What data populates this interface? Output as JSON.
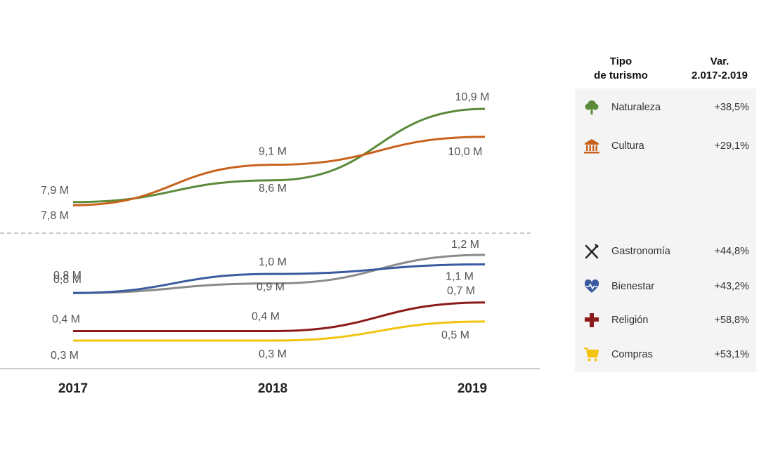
{
  "chart_data": {
    "type": "line",
    "x": [
      "2017",
      "2018",
      "2019"
    ],
    "series": [
      {
        "name": "Naturaleza",
        "color": "#5a8a3a",
        "values": [
          7.9,
          8.6,
          10.9
        ],
        "labels": [
          "7,9 M",
          "8,6 M",
          "10,9 M"
        ]
      },
      {
        "name": "Cultura",
        "color": "#c8611b",
        "values": [
          7.8,
          9.1,
          10.0
        ],
        "labels": [
          "7,8 M",
          "9,1 M",
          "10,0 M"
        ]
      },
      {
        "name": "Gastronomía",
        "color": "#8a8a8a",
        "values": [
          0.8,
          0.9,
          1.2
        ],
        "labels": [
          "0,8 M",
          "0,9 M",
          "1,2 M"
        ]
      },
      {
        "name": "Bienestar",
        "color": "#3a5ba0",
        "values": [
          0.8,
          1.0,
          1.1
        ],
        "labels": [
          "0,8 M",
          "1,0 M",
          "1,1 M"
        ]
      },
      {
        "name": "Religión",
        "color": "#8b1a1a",
        "values": [
          0.4,
          0.4,
          0.7
        ],
        "labels": [
          "0,4 M",
          "0,4 M",
          "0,7 M"
        ]
      },
      {
        "name": "Compras",
        "color": "#f2c30f",
        "values": [
          0.3,
          0.3,
          0.5
        ],
        "labels": [
          "0,3 M",
          "0,3 M",
          "0,5 M"
        ]
      }
    ],
    "title": "",
    "xlabel": "",
    "ylabel": "",
    "axis_break": "dashed line between upper and lower series groups"
  },
  "table": {
    "header_type": [
      "Tipo",
      "de turismo"
    ],
    "header_var": [
      "Var.",
      "2.017-2.019"
    ],
    "rows": [
      {
        "name": "Naturaleza",
        "var": "+38,5%",
        "icon": "tree-icon",
        "color": "#5a8a3a"
      },
      {
        "name": "Cultura",
        "var": "+29,1%",
        "icon": "museum-icon",
        "color": "#c8611b"
      },
      {
        "name": "Gastronomía",
        "var": "+44,8%",
        "icon": "fork-knife-icon",
        "color": "#222222"
      },
      {
        "name": "Bienestar",
        "var": "+43,2%",
        "icon": "heart-pulse-icon",
        "color": "#3a5ba0"
      },
      {
        "name": "Religión",
        "var": "+58,8%",
        "icon": "cross-icon",
        "color": "#8b1a1a"
      },
      {
        "name": "Compras",
        "var": "+53,1%",
        "icon": "cart-icon",
        "color": "#f2c30f"
      }
    ]
  }
}
